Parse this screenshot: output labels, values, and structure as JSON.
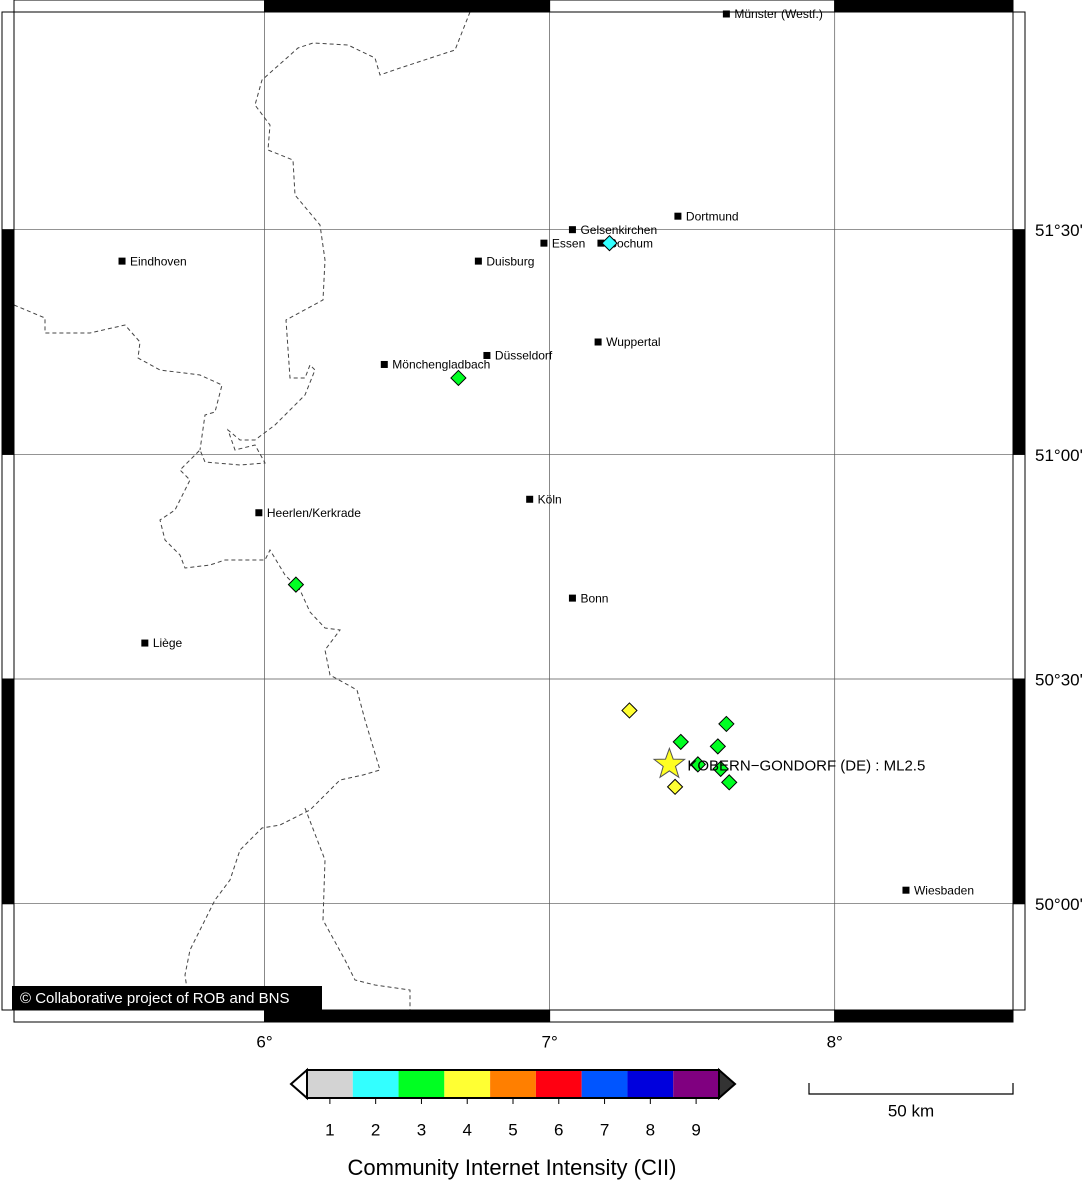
{
  "map": {
    "lonlim": [
      5.1,
      8.65
    ],
    "latlim": [
      49.75,
      52.0
    ],
    "lonticks": [
      {
        "value": 6,
        "label": "6°"
      },
      {
        "value": 7,
        "label": "7°"
      },
      {
        "value": 8,
        "label": "8°"
      }
    ],
    "latticks": [
      {
        "value": 50,
        "label": "50°00'"
      },
      {
        "value": 50.5,
        "label": "50°30'"
      },
      {
        "value": 51,
        "label": "51°00'"
      },
      {
        "value": 51.5,
        "label": "51°30'"
      }
    ],
    "cities": [
      {
        "name": "Münster (Westf.)",
        "lon": 7.62,
        "lat": 51.98
      },
      {
        "name": "Dortmund",
        "lon": 7.45,
        "lat": 51.53
      },
      {
        "name": "Gelsenkirchen",
        "lon": 7.08,
        "lat": 51.5
      },
      {
        "name": "Essen",
        "lon": 6.98,
        "lat": 51.47
      },
      {
        "name": "Bochum",
        "lon": 7.18,
        "lat": 51.47
      },
      {
        "name": "Duisburg",
        "lon": 6.75,
        "lat": 51.43
      },
      {
        "name": "Eindhoven",
        "lon": 5.5,
        "lat": 51.43
      },
      {
        "name": "Wuppertal",
        "lon": 7.17,
        "lat": 51.25
      },
      {
        "name": "Düsseldorf",
        "lon": 6.78,
        "lat": 51.22
      },
      {
        "name": "Mönchengladbach",
        "lon": 6.42,
        "lat": 51.2
      },
      {
        "name": "Köln",
        "lon": 6.93,
        "lat": 50.9
      },
      {
        "name": "Heerlen/Kerkrade",
        "lon": 5.98,
        "lat": 50.87
      },
      {
        "name": "Bonn",
        "lon": 7.08,
        "lat": 50.68
      },
      {
        "name": "Liège",
        "lon": 5.58,
        "lat": 50.58
      },
      {
        "name": "Wiesbaden",
        "lon": 8.25,
        "lat": 50.03
      }
    ],
    "observations": [
      {
        "lon": 7.21,
        "lat": 51.47,
        "cii": 2
      },
      {
        "lon": 6.68,
        "lat": 51.17,
        "cii": 3
      },
      {
        "lon": 6.11,
        "lat": 50.71,
        "cii": 3
      },
      {
        "lon": 7.28,
        "lat": 50.43,
        "cii": 4
      },
      {
        "lon": 7.62,
        "lat": 50.4,
        "cii": 3
      },
      {
        "lon": 7.46,
        "lat": 50.36,
        "cii": 3
      },
      {
        "lon": 7.59,
        "lat": 50.35,
        "cii": 3
      },
      {
        "lon": 7.52,
        "lat": 50.31,
        "cii": 3
      },
      {
        "lon": 7.6,
        "lat": 50.3,
        "cii": 3
      },
      {
        "lon": 7.44,
        "lat": 50.26,
        "cii": 4
      },
      {
        "lon": 7.63,
        "lat": 50.27,
        "cii": 3
      }
    ],
    "epicenter": {
      "lon": 7.42,
      "lat": 50.31,
      "label": "KOBERN−GONDORF (DE) : ML2.5",
      "color": "#ffff22"
    },
    "credit": "© Collaborative project of ROB and BNS"
  },
  "colorbar": {
    "title": "Community Internet Intensity (CII)",
    "levels": [
      1,
      2,
      3,
      4,
      5,
      6,
      7,
      8,
      9
    ],
    "colors": [
      "#d3d3d3",
      "#33ffff",
      "#00ff22",
      "#ffff33",
      "#ff7f00",
      "#ff0011",
      "#0055ff",
      "#0000dd",
      "#800080"
    ]
  },
  "scale_bar": {
    "label": "50 km"
  }
}
